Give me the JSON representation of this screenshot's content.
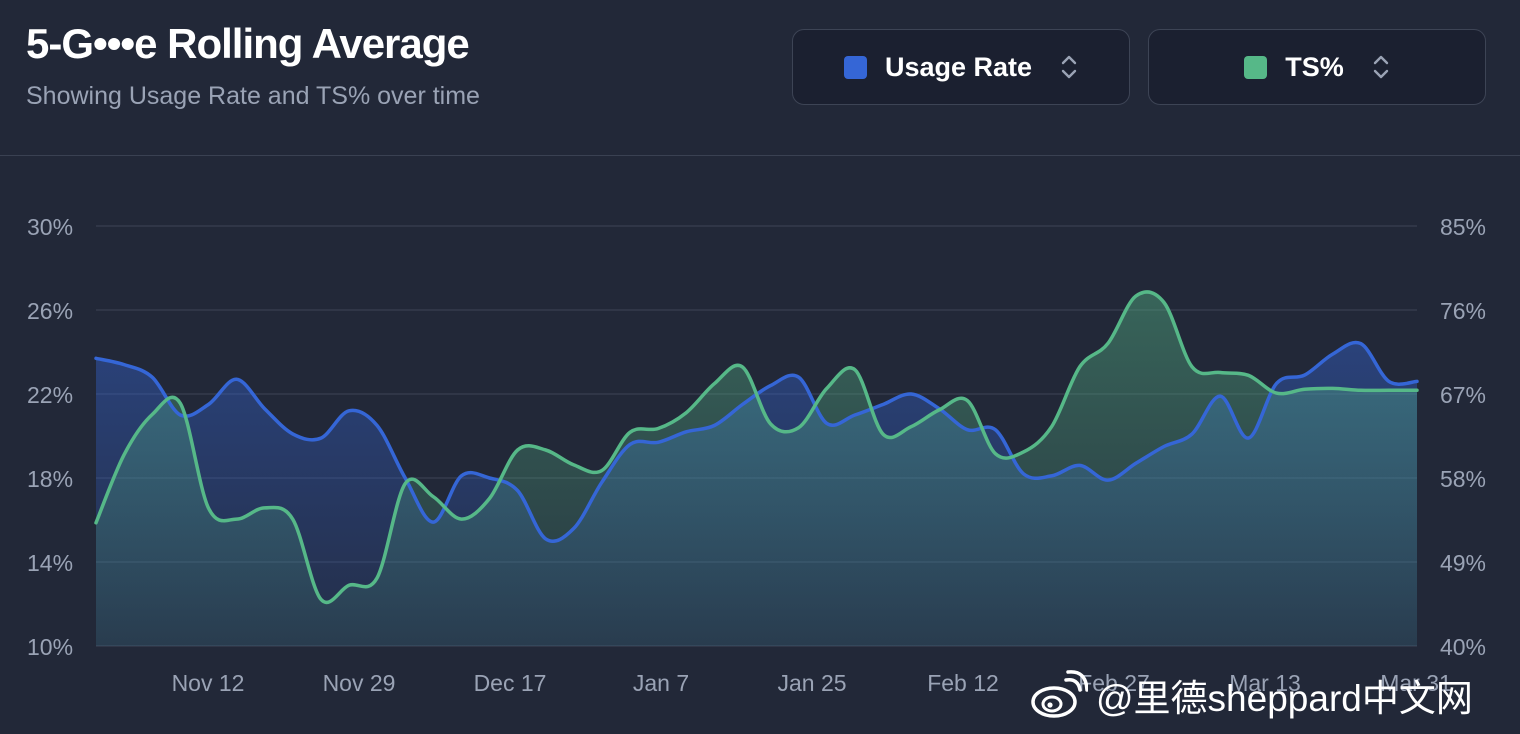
{
  "header": {
    "title": "5-G•••e Rolling Average",
    "subtitle": "Showing Usage Rate and TS% over time"
  },
  "selectors": {
    "usage": {
      "label": "Usage Rate",
      "color": "#3566d6",
      "icon": "chevron-up-down-icon"
    },
    "ts": {
      "label": "TS%",
      "color": "#56b888",
      "icon": "chevron-up-down-icon"
    }
  },
  "watermark": {
    "text": "@里德sheppard中文网",
    "icon": "weibo-logo-icon"
  },
  "chart_data": {
    "type": "area",
    "title": "5-G•••e Rolling Average",
    "x_tick_labels": [
      "Nov 12",
      "Nov 29",
      "Dec 17",
      "Jan 7",
      "Jan 25",
      "Feb 12",
      "Feb 27",
      "Mar 13",
      "Mar 31"
    ],
    "y_left": {
      "label": "Usage Rate",
      "ticks": [
        "30%",
        "26%",
        "22%",
        "18%",
        "14%",
        "10%"
      ],
      "ylim": [
        10,
        30
      ]
    },
    "y_right": {
      "label": "TS%",
      "ticks": [
        "85%",
        "76%",
        "67%",
        "58%",
        "49%",
        "40%"
      ],
      "ylim": [
        40,
        85
      ]
    },
    "x_index_range": [
      0,
      47
    ],
    "series": [
      {
        "name": "Usage Rate",
        "axis": "left",
        "color": "#3566d6",
        "unit": "%",
        "x": [
          0,
          1,
          2,
          3,
          4,
          5,
          6,
          7,
          8,
          9,
          10,
          11,
          12,
          13,
          14,
          15,
          16,
          17,
          18,
          19,
          20,
          21,
          22,
          23,
          24,
          25,
          26,
          27,
          28,
          29,
          30,
          31,
          32,
          33,
          34,
          35,
          36,
          37,
          38,
          39,
          40,
          41,
          42,
          43,
          44,
          45,
          46,
          47
        ],
        "values": [
          23.7,
          23.4,
          22.8,
          21.0,
          21.5,
          22.7,
          21.3,
          20.1,
          19.9,
          21.2,
          20.5,
          18.0,
          15.9,
          18.1,
          18.0,
          17.4,
          15.1,
          15.6,
          17.8,
          19.6,
          19.7,
          20.2,
          20.5,
          21.5,
          22.4,
          22.8,
          20.6,
          21.0,
          21.5,
          22.0,
          21.3,
          20.3,
          20.3,
          18.2,
          18.1,
          18.6,
          17.9,
          18.7,
          19.5,
          20.1,
          21.9,
          19.9,
          22.5,
          22.9,
          23.9,
          24.4,
          22.6,
          22.6
        ]
      },
      {
        "name": "TS%",
        "axis": "right",
        "color": "#56b888",
        "unit": "%",
        "x": [
          0,
          1,
          2,
          3,
          4,
          5,
          6,
          7,
          8,
          9,
          10,
          11,
          12,
          13,
          14,
          15,
          16,
          17,
          18,
          19,
          20,
          21,
          22,
          23,
          24,
          25,
          26,
          27,
          28,
          29,
          30,
          31,
          32,
          33,
          34,
          35,
          36,
          37,
          38,
          39,
          40,
          41,
          42,
          43,
          44,
          45,
          46,
          47
        ],
        "values": [
          53.2,
          60.5,
          64.8,
          66.0,
          54.8,
          53.6,
          54.8,
          53.6,
          45.0,
          46.5,
          47.3,
          57.4,
          56.0,
          53.6,
          55.8,
          61.0,
          61.0,
          59.4,
          58.8,
          62.9,
          63.3,
          65.0,
          68.1,
          69.9,
          63.8,
          63.4,
          67.6,
          69.6,
          62.7,
          63.5,
          65.3,
          66.3,
          60.6,
          60.8,
          63.5,
          69.9,
          72.4,
          77.5,
          76.8,
          69.9,
          69.3,
          69.0,
          67.1,
          67.5,
          67.6,
          67.4,
          67.4,
          67.4
        ]
      }
    ]
  }
}
